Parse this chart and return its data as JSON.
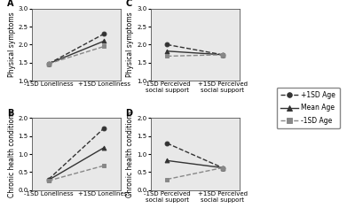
{
  "panels": {
    "A": {
      "title": "A",
      "ylabel": "Physical symptoms",
      "xlabel_ticks": [
        "-1SD Loneliness",
        "+1SD Loneliness"
      ],
      "ylim": [
        1,
        3
      ],
      "yticks": [
        1.0,
        1.5,
        2.0,
        2.5,
        3.0
      ],
      "lines": {
        "plus_sd": [
          1.47,
          2.3
        ],
        "mean_age": [
          1.47,
          2.1
        ],
        "minus_sd": [
          1.47,
          1.95
        ]
      }
    },
    "B": {
      "title": "B",
      "ylabel": "Chronic health conditions",
      "xlabel_ticks": [
        "-1SD Loneliness",
        "+1SD Loneliness"
      ],
      "ylim": [
        0,
        2
      ],
      "yticks": [
        0.0,
        0.5,
        1.0,
        1.5,
        2.0
      ],
      "lines": {
        "plus_sd": [
          0.3,
          1.72
        ],
        "mean_age": [
          0.28,
          1.18
        ],
        "minus_sd": [
          0.26,
          0.68
        ]
      }
    },
    "C": {
      "title": "C",
      "ylabel": "Physical symptoms",
      "xlabel_ticks": [
        "-1SD Perceived\nsocial support",
        "+1SD Perceived\nsocial support"
      ],
      "ylim": [
        1,
        3
      ],
      "yticks": [
        1.0,
        1.5,
        2.0,
        2.5,
        3.0
      ],
      "lines": {
        "plus_sd": [
          2.0,
          1.72
        ],
        "mean_age": [
          1.82,
          1.72
        ],
        "minus_sd": [
          1.68,
          1.72
        ]
      }
    },
    "D": {
      "title": "D",
      "ylabel": "Chronic health conditions",
      "xlabel_ticks": [
        "-1SD Perceived\nsocial support",
        "+1SD Perceived\nsocial support"
      ],
      "ylim": [
        0,
        2
      ],
      "yticks": [
        0.0,
        0.5,
        1.0,
        1.5,
        2.0
      ],
      "lines": {
        "plus_sd": [
          1.3,
          0.62
        ],
        "mean_age": [
          0.82,
          0.62
        ],
        "minus_sd": [
          0.3,
          0.62
        ]
      }
    }
  },
  "legend": {
    "plus_sd_label": "+1SD Age",
    "mean_age_label": "Mean Age",
    "minus_sd_label": "-1SD Age"
  },
  "line_keys_order": [
    "plus_sd",
    "mean_age",
    "minus_sd"
  ],
  "colors": {
    "plus_sd": "#333333",
    "mean_age": "#333333",
    "minus_sd": "#888888"
  },
  "linestyles": {
    "plus_sd": "--",
    "mean_age": "-",
    "minus_sd": "--"
  },
  "markers": {
    "plus_sd": "o",
    "mean_age": "^",
    "minus_sd": "s"
  },
  "markerfacecolor": {
    "plus_sd": "#333333",
    "mean_age": "#333333",
    "minus_sd": "#888888"
  },
  "panel_facecolor": "#e8e8e8",
  "background": "#ffffff",
  "label_fontsize": 5.5,
  "tick_fontsize": 5.0,
  "title_fontsize": 7,
  "legend_fontsize": 5.5
}
